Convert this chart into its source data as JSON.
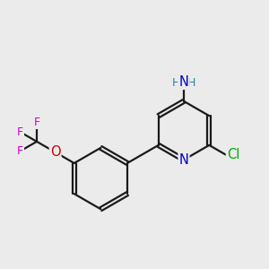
{
  "bg_color": "#ebebeb",
  "bond_color": "#1a1a1a",
  "bond_width": 1.6,
  "atom_colors": {
    "N": "#0000cc",
    "Cl": "#00aa00",
    "O": "#cc0000",
    "F": "#cc00cc",
    "H": "#2288aa",
    "C": "#1a1a1a"
  },
  "font_size_atom": 10.5,
  "font_size_small": 9.0
}
